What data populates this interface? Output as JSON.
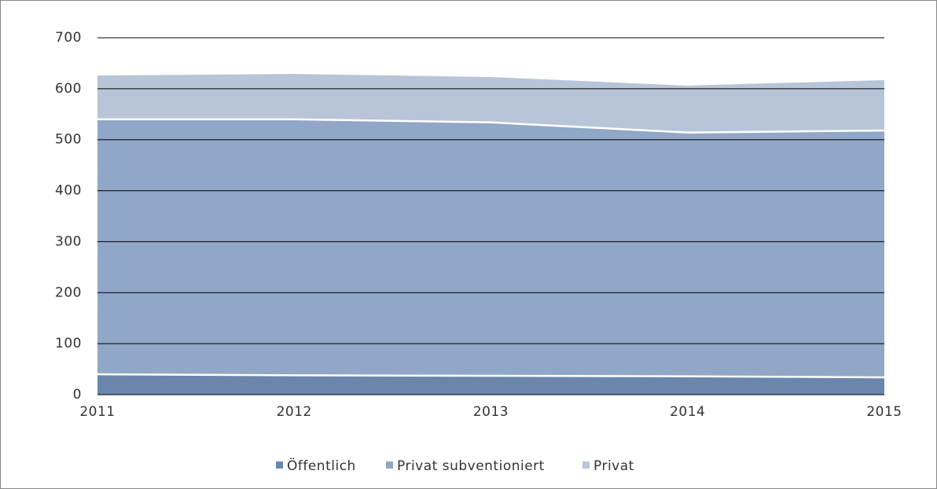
{
  "chart_data": {
    "type": "stacked-area",
    "x": [
      2011,
      2012,
      2013,
      2014,
      2015
    ],
    "xlim": [
      2011,
      2015
    ],
    "xticks": [
      2011,
      2012,
      2013,
      2014,
      2015
    ],
    "ylim": [
      0,
      700
    ],
    "yticks": [
      0,
      100,
      200,
      300,
      400,
      500,
      600,
      700
    ],
    "grid": true,
    "legend": "bottom",
    "series": [
      {
        "name": "Öffentlich",
        "color": "#6a86ad",
        "values": [
          40,
          38,
          37,
          36,
          34
        ]
      },
      {
        "name": "Privat subventioniert",
        "color": "#91a7c7",
        "values": [
          500,
          502,
          497,
          478,
          484
        ]
      },
      {
        "name": "Privat",
        "color": "#b8c5d8",
        "values": [
          86,
          89,
          89,
          92,
          99
        ]
      }
    ]
  }
}
